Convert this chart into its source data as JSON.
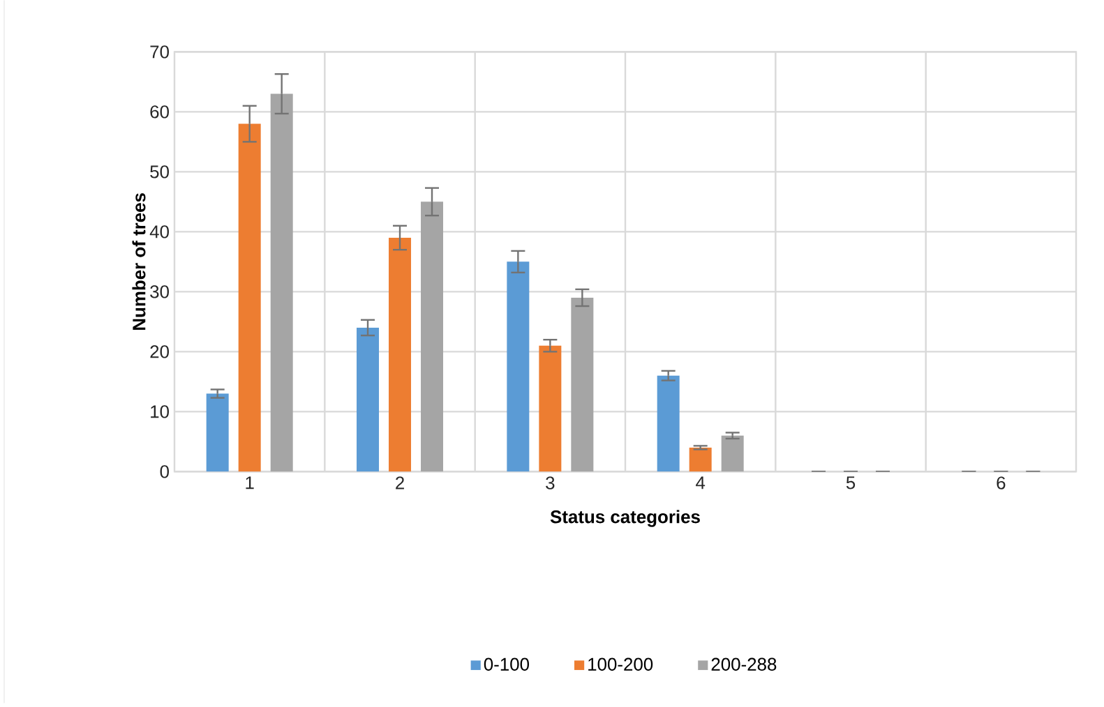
{
  "chart_data": {
    "type": "bar",
    "xlabel": "Status categories",
    "ylabel": "Number of trees",
    "categories": [
      "1",
      "2",
      "3",
      "4",
      "5",
      "6"
    ],
    "series": [
      {
        "name": "0-100",
        "color": "#5b9bd5",
        "values": [
          13,
          24,
          35,
          16,
          0,
          0
        ],
        "errors": [
          0.7,
          1.3,
          1.8,
          0.8,
          0,
          0
        ]
      },
      {
        "name": "100-200",
        "color": "#ed7d31",
        "values": [
          58,
          39,
          21,
          4,
          0,
          0
        ],
        "errors": [
          3,
          2,
          1,
          0.3,
          0,
          0
        ]
      },
      {
        "name": "200-288",
        "color": "#a5a5a5",
        "values": [
          63,
          45,
          29,
          6,
          0,
          0
        ],
        "errors": [
          3.3,
          2.3,
          1.4,
          0.5,
          0,
          0
        ]
      }
    ],
    "ylim": [
      0,
      70
    ],
    "yticks": [
      0,
      10,
      20,
      30,
      40,
      50,
      60,
      70
    ],
    "grid": true,
    "legend": "bottom"
  }
}
